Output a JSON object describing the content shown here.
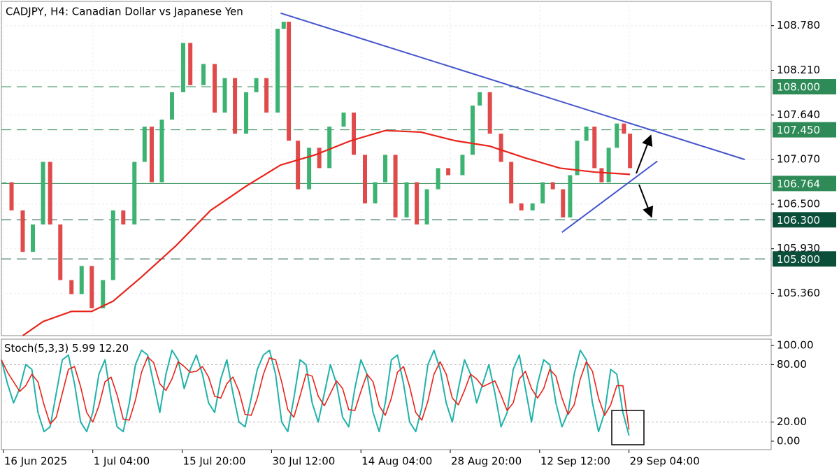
{
  "chart_data": [
    {
      "type": "candlestick",
      "title": "CADJPY, H4:  Canadian Dollar vs Japanese Yen",
      "up_color": "#3cb371",
      "down_color": "#e04a4a",
      "x": [
        3,
        10,
        21,
        31,
        41,
        48,
        58,
        69,
        79,
        89,
        100,
        110,
        120,
        131,
        141,
        148,
        158,
        168,
        179,
        186,
        199,
        210,
        220,
        230,
        241,
        251,
        261,
        272,
        278,
        283,
        292,
        303,
        313,
        323,
        337,
        347,
        358,
        368,
        378,
        388,
        399,
        409,
        419,
        430,
        440,
        454,
        464,
        471,
        481,
        492,
        502,
        512,
        523,
        533,
        543,
        553,
        560,
        567,
        576,
        584,
        591,
        598,
        606,
        613,
        619
      ],
      "values": [
        106.78,
        106.42,
        105.89,
        106.24,
        107.04,
        106.24,
        105.53,
        105.35,
        105.71,
        105.17,
        105.53,
        106.42,
        106.24,
        107.04,
        107.49,
        106.78,
        107.58,
        107.93,
        108.56,
        108.02,
        108.29,
        107.67,
        108.11,
        107.4,
        107.93,
        108.11,
        107.67,
        108.74,
        108.83,
        107.31,
        106.69,
        107.22,
        106.96,
        107.49,
        107.67,
        107.13,
        106.51,
        106.78,
        107.13,
        106.33,
        106.78,
        106.24,
        106.69,
        106.96,
        106.87,
        107.13,
        107.76,
        107.93,
        107.4,
        107.04,
        106.51,
        106.42,
        106.51,
        106.78,
        106.69,
        106.33,
        106.87,
        107.31,
        107.49,
        106.96,
        106.78,
        107.22,
        107.53,
        107.4,
        106.96
      ],
      "overlays": [
        {
          "color": "#e8231a",
          "x": [
            21,
            41,
            69,
            89,
            110,
            138,
            172,
            206,
            241,
            275,
            309,
            344,
            378,
            413,
            447,
            481,
            516,
            550,
            584,
            619
          ],
          "values": [
            104.82,
            105.0,
            105.13,
            105.13,
            105.26,
            105.57,
            105.97,
            106.42,
            106.73,
            107.0,
            107.13,
            107.31,
            107.44,
            107.42,
            107.31,
            107.24,
            107.09,
            106.96,
            106.91,
            106.88
          ]
        }
      ],
      "trendlines": [
        {
          "color": "#4455cc",
          "x": [
            275,
            732
          ],
          "values": [
            108.94,
            107.07
          ]
        },
        {
          "color": "#4455cc",
          "x": [
            552,
            646
          ],
          "values": [
            106.14,
            107.05
          ]
        }
      ],
      "levels": [
        {
          "value": 108.0,
          "label": "108.000",
          "style": "dashed",
          "color": "#2e8b57"
        },
        {
          "value": 107.45,
          "label": "107.450",
          "style": "dashed",
          "color": "#2e8b57"
        },
        {
          "value": 106.764,
          "label": "106.764",
          "style": "solid",
          "color": "#2e8b57"
        },
        {
          "value": 106.3,
          "label": "106.300",
          "style": "dashed",
          "color": "#0b4f3a"
        },
        {
          "value": 105.8,
          "label": "105.800",
          "style": "dashed",
          "color": "#0b4f3a"
        }
      ],
      "xlim": [
        0,
        758
      ],
      "ylim": [
        104.82,
        109.09
      ],
      "xticks": [
        {
          "value": 2,
          "label": "16 Jun 2025"
        },
        {
          "value": 90,
          "label": "1 Jul 04:00"
        },
        {
          "value": 178,
          "label": "15 Jul 20:00"
        },
        {
          "value": 266,
          "label": "30 Jul 12:00"
        },
        {
          "value": 354,
          "label": "14 Aug 04:00"
        },
        {
          "value": 442,
          "label": "28 Aug 20:00"
        },
        {
          "value": 530,
          "label": "12 Sep 12:00"
        },
        {
          "value": 618,
          "label": "29 Sep 04:00"
        }
      ],
      "yticks": [
        {
          "value": 105.36,
          "label": "105.360"
        },
        {
          "value": 105.93,
          "label": "105.930"
        },
        {
          "value": 106.5,
          "label": "106.500"
        },
        {
          "value": 107.07,
          "label": "107.070"
        },
        {
          "value": 107.64,
          "label": "107.640"
        },
        {
          "value": 108.21,
          "label": "108.210"
        },
        {
          "value": 108.78,
          "label": "108.780"
        }
      ],
      "grid": true
    },
    {
      "type": "stochastic",
      "label": "Stoch(5,3,3)",
      "readout": [
        {
          "value": 5.99,
          "label": "5.99"
        },
        {
          "value": 12.2,
          "label": "12.20"
        }
      ],
      "x": [
        0,
        6,
        12,
        18,
        24,
        30,
        36,
        42,
        48,
        54,
        60,
        66,
        72,
        78,
        84,
        90,
        96,
        102,
        108,
        114,
        120,
        126,
        132,
        138,
        144,
        150,
        156,
        162,
        168,
        174,
        180,
        186,
        192,
        198,
        204,
        210,
        216,
        222,
        228,
        234,
        240,
        246,
        252,
        258,
        264,
        270,
        276,
        282,
        288,
        294,
        300,
        306,
        312,
        318,
        324,
        330,
        336,
        342,
        348,
        354,
        360,
        366,
        372,
        378,
        384,
        390,
        396,
        402,
        408,
        414,
        420,
        426,
        432,
        438,
        444,
        450,
        456,
        462,
        468,
        474,
        480,
        486,
        492,
        498,
        504,
        510,
        516,
        522,
        528,
        534,
        540,
        546,
        552,
        558,
        564,
        570,
        576,
        582,
        588,
        594,
        600,
        606,
        612,
        618
      ],
      "series": [
        {
          "color": "#20b2aa",
          "values": [
            85,
            60,
            40,
            55,
            80,
            75,
            30,
            10,
            15,
            50,
            85,
            90,
            60,
            20,
            10,
            30,
            70,
            85,
            45,
            15,
            10,
            40,
            80,
            95,
            90,
            60,
            30,
            70,
            95,
            85,
            55,
            75,
            90,
            70,
            40,
            30,
            65,
            85,
            50,
            20,
            15,
            45,
            75,
            90,
            95,
            70,
            20,
            10,
            45,
            85,
            80,
            40,
            20,
            50,
            80,
            60,
            25,
            15,
            55,
            85,
            70,
            30,
            10,
            40,
            85,
            90,
            60,
            20,
            10,
            35,
            80,
            95,
            75,
            40,
            20,
            55,
            85,
            70,
            40,
            60,
            80,
            50,
            15,
            30,
            75,
            90,
            55,
            20,
            60,
            85,
            80,
            40,
            15,
            30,
            70,
            95,
            85,
            40,
            10,
            30,
            75,
            70,
            30,
            5.99
          ]
        },
        {
          "color": "#e8231a",
          "values": [
            85,
            72,
            62,
            52,
            58,
            70,
            62,
            38,
            18,
            25,
            50,
            75,
            78,
            57,
            30,
            20,
            37,
            62,
            67,
            48,
            23,
            22,
            43,
            72,
            88,
            82,
            60,
            53,
            65,
            83,
            78,
            72,
            73,
            78,
            67,
            47,
            45,
            60,
            67,
            52,
            28,
            27,
            45,
            70,
            87,
            85,
            62,
            33,
            25,
            47,
            70,
            68,
            47,
            37,
            50,
            63,
            55,
            33,
            32,
            52,
            70,
            62,
            37,
            27,
            45,
            72,
            78,
            57,
            30,
            22,
            42,
            70,
            83,
            70,
            45,
            38,
            53,
            70,
            65,
            57,
            60,
            63,
            48,
            32,
            40,
            65,
            73,
            55,
            45,
            55,
            75,
            68,
            45,
            28,
            38,
            65,
            83,
            73,
            45,
            27,
            38,
            58,
            58,
            12.2
          ]
        }
      ],
      "xlim": [
        0,
        758
      ],
      "ylim": [
        -8.8,
        106.6
      ],
      "yticks": [
        {
          "value": 0,
          "label": "0.00"
        },
        {
          "value": 20,
          "label": "20.00"
        },
        {
          "value": 80,
          "label": "80.00"
        },
        {
          "value": 100,
          "label": "100.00"
        }
      ],
      "grid": true
    }
  ]
}
